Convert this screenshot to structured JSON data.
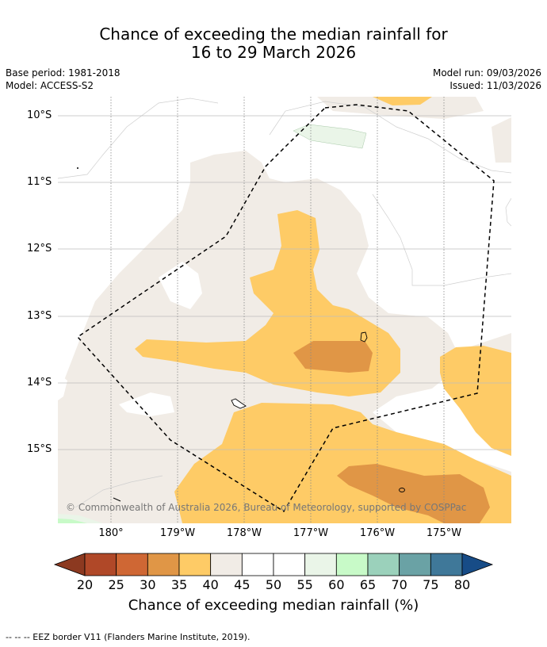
{
  "title": {
    "line1": "Chance of exceeding the median rainfall for",
    "line2": "16 to 29 March 2026"
  },
  "meta": {
    "base_period": "Base period: 1981-2018",
    "model": "Model: ACCESS-S2",
    "model_run": "Model run: 09/03/2026",
    "issued": "Issued: 11/03/2026"
  },
  "map": {
    "lat_labels": [
      "10°S",
      "11°S",
      "12°S",
      "13°S",
      "14°S",
      "15°S"
    ],
    "lon_labels": [
      "180°",
      "179°W",
      "178°W",
      "177°W",
      "176°W",
      "175°W"
    ],
    "copyright": "© Commonwealth of Australia 2026, Bureau of Meteorology, supported by COSPPac",
    "colors": {
      "c35_40": "#fecb66",
      "c30_35": "#e09646",
      "c40_45": "#f1ece6",
      "c55_60": "#eaf5e8",
      "c60_65": "#c8fac8"
    }
  },
  "colorbar": {
    "ticks": [
      "20",
      "25",
      "30",
      "35",
      "40",
      "45",
      "50",
      "55",
      "60",
      "65",
      "70",
      "75",
      "80"
    ],
    "colors": [
      "#b04828",
      "#cf6734",
      "#e09646",
      "#fecb66",
      "#f1ece6",
      "#ffffff",
      "#ffffff",
      "#eaf5e8",
      "#c8fac8",
      "#9bd1bb",
      "#6aa2a5",
      "#3f7899"
    ],
    "low_extend_color": "#8c3920",
    "high_extend_color": "#174c87",
    "label": "Chance of exceeding median rainfall (%)"
  },
  "footer": "--  --  -- EEZ border V11 (Flanders Marine Institute, 2019)."
}
